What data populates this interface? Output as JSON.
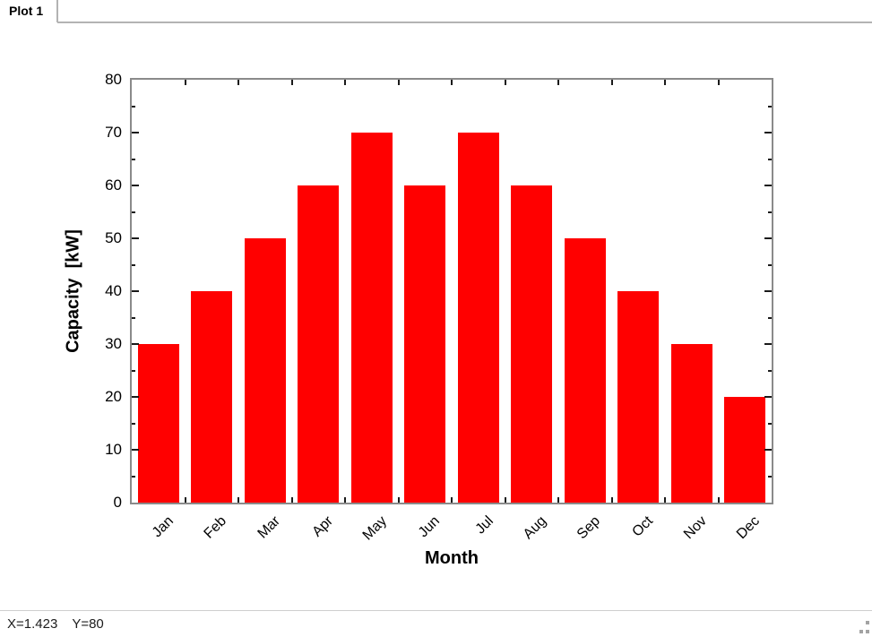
{
  "tab": {
    "label": "Plot 1"
  },
  "statusbar": {
    "x_readout": "X=1.423",
    "y_readout": "Y=80"
  },
  "chart_data": {
    "type": "bar",
    "title": "",
    "categories": [
      "Jan",
      "Feb",
      "Mar",
      "Apr",
      "May",
      "Jun",
      "Jul",
      "Aug",
      "Sep",
      "Oct",
      "Nov",
      "Dec"
    ],
    "values": [
      30,
      40,
      50,
      60,
      70,
      60,
      70,
      60,
      50,
      40,
      30,
      20
    ],
    "xlabel": "Month",
    "ylabel": "Capacity  [kW]",
    "ylim": [
      0,
      80
    ],
    "ytick_major_step": 10,
    "ytick_minor_step": 5,
    "grid": false,
    "legend_position": "none",
    "bar_color": "#ff0000",
    "axis_color": "#8a8a8a",
    "tick_color": "#1a1a1a",
    "label_color": "#000000"
  }
}
